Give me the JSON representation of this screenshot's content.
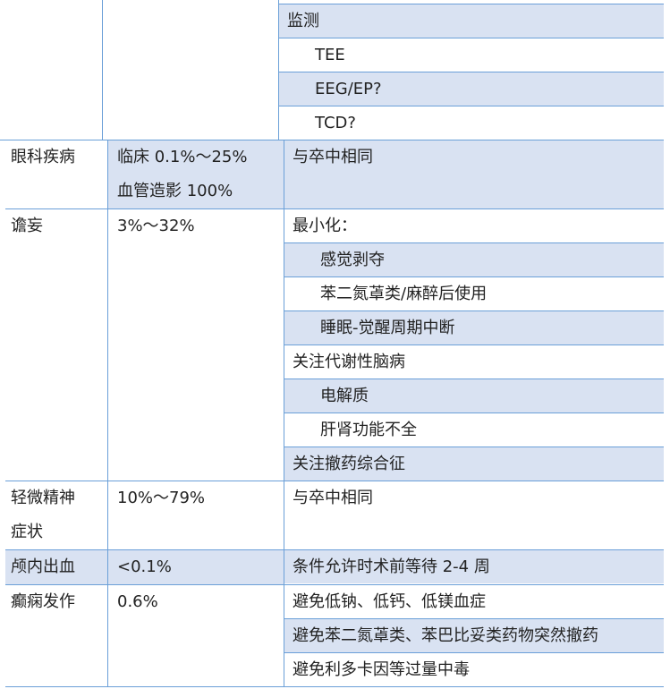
{
  "colors": {
    "border": "#6a9fd8",
    "shade": "#d9e2f2"
  },
  "rows": [
    {
      "c1": "",
      "c2": "",
      "c2_shade": false,
      "first": true,
      "items": [
        {
          "text": "监测",
          "indent": false,
          "shade": true
        },
        {
          "text": "TEE",
          "indent": true,
          "shade": false
        },
        {
          "text": "EEG/EP?",
          "indent": true,
          "shade": true
        },
        {
          "text": "TCD?",
          "indent": true,
          "shade": false
        }
      ]
    },
    {
      "c1": "眼科疾病",
      "c2": "临床 0.1%～25%\n血管造影 100%",
      "c2_shade": true,
      "items": [
        {
          "text": "与卒中相同",
          "indent": false,
          "shade": true,
          "tall": true
        }
      ]
    },
    {
      "c1": "谵妄",
      "c2": "3%～32%",
      "c2_shade": false,
      "items": [
        {
          "text": "最小化：",
          "indent": false,
          "shade": false
        },
        {
          "text": "感觉剥夺",
          "indent": true,
          "shade": true
        },
        {
          "text": "苯二氮䓬类/麻醉后使用",
          "indent": true,
          "shade": false
        },
        {
          "text": "睡眠-觉醒周期中断",
          "indent": true,
          "shade": true
        },
        {
          "text": "关注代谢性脑病",
          "indent": false,
          "shade": false
        },
        {
          "text": "电解质",
          "indent": true,
          "shade": true
        },
        {
          "text": "肝肾功能不全",
          "indent": true,
          "shade": false
        },
        {
          "text": "关注撤药综合征",
          "indent": false,
          "shade": true
        }
      ]
    },
    {
      "c1": "轻微精神\n症状",
      "c2": "10%～79%",
      "c2_shade": false,
      "items": [
        {
          "text": "与卒中相同",
          "indent": false,
          "shade": false,
          "tall": true
        }
      ]
    },
    {
      "c1": "颅内出血",
      "c2": "<0.1%",
      "c2_shade": true,
      "c1_shade": true,
      "items": [
        {
          "text": "条件允许时术前等待 2-4 周",
          "indent": false,
          "shade": true
        }
      ]
    },
    {
      "c1": "癫痫发作",
      "c2": "0.6%",
      "c2_shade": false,
      "items": [
        {
          "text": "避免低钠、低钙、低镁血症",
          "indent": false,
          "shade": false
        },
        {
          "text": "避免苯二氮䓬类、苯巴比妥类药物突然撤药",
          "indent": false,
          "shade": true
        },
        {
          "text": "避免利多卡因等过量中毒",
          "indent": false,
          "shade": false
        }
      ]
    }
  ]
}
